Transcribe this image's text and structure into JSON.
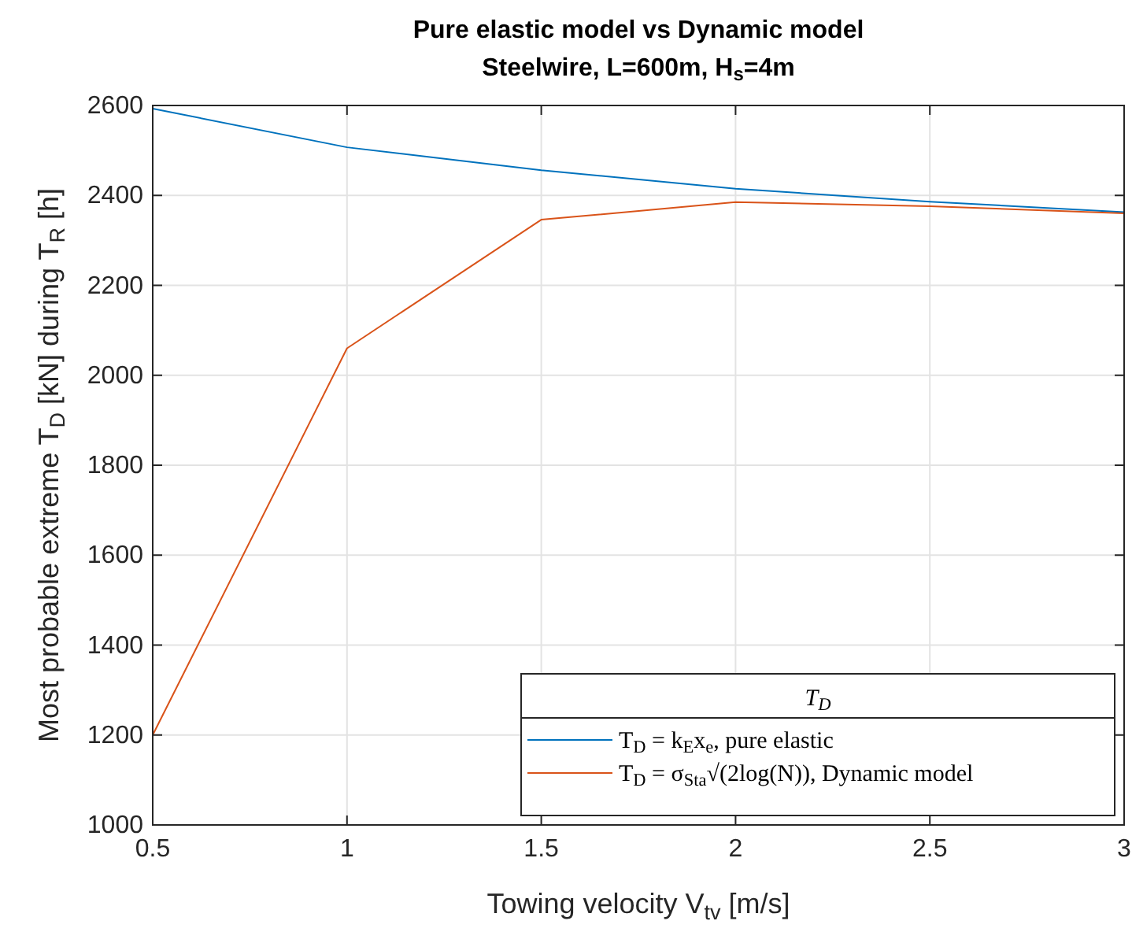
{
  "chart_data": {
    "type": "line",
    "title": "Pure elastic model vs Dynamic model",
    "subtitle": "Steelwire, L=600m, H$_{s}$=4m",
    "xlabel": "Towing velocity V$_{tv}$ [m/s]",
    "ylabel": "Most probable extreme T$_{D}$ [kN] during T$_{R}$ [h]",
    "legend_title": "T$_{D}$",
    "x": [
      0.5,
      1,
      1.5,
      2,
      2.5,
      3
    ],
    "series": [
      {
        "name": "T$_{D}$ = k$_{E}$x$_{e}$, pure elastic",
        "color": "#0072bd",
        "values": [
          2593,
          2507,
          2456,
          2415,
          2386,
          2363
        ]
      },
      {
        "name": "T$_{D}$ = σ$_{Sta}$√(2log(N)), Dynamic model",
        "color": "#d95319",
        "values": [
          1200,
          2060,
          2346,
          2385,
          2376,
          2360
        ]
      }
    ],
    "xlim": [
      0.5,
      3
    ],
    "xticks": [
      0.5,
      1,
      1.5,
      2,
      2.5,
      3
    ],
    "ylim": [
      1000,
      2600
    ],
    "yticks": [
      1000,
      1200,
      1400,
      1600,
      1800,
      2000,
      2200,
      2400,
      2600
    ],
    "grid": true,
    "legend": "bottom right",
    "marker": "none",
    "line_style": "solid"
  }
}
